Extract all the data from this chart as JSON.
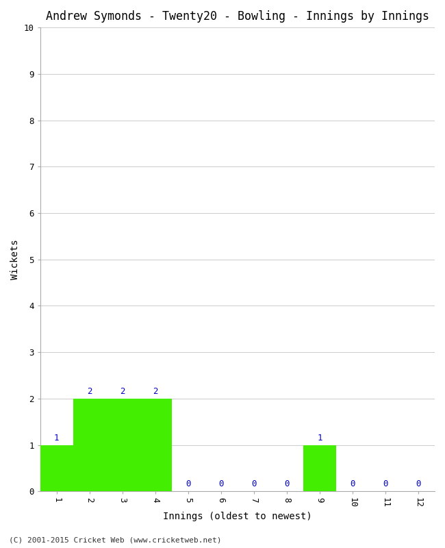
{
  "title": "Andrew Symonds - Twenty20 - Bowling - Innings by Innings",
  "innings": [
    1,
    2,
    3,
    4,
    5,
    6,
    7,
    8,
    9,
    10,
    11,
    12
  ],
  "wickets": [
    1,
    2,
    2,
    2,
    0,
    0,
    0,
    0,
    1,
    0,
    0,
    0
  ],
  "bar_color": "#44ee00",
  "label_color": "#0000cc",
  "ylabel": "Wickets",
  "xlabel": "Innings (oldest to newest)",
  "ylim": [
    0,
    10
  ],
  "yticks": [
    0,
    1,
    2,
    3,
    4,
    5,
    6,
    7,
    8,
    9,
    10
  ],
  "xticks": [
    1,
    2,
    3,
    4,
    5,
    6,
    7,
    8,
    9,
    10,
    11,
    12
  ],
  "footnote": "(C) 2001-2015 Cricket Web (www.cricketweb.net)",
  "background_color": "#ffffff",
  "plot_bg_color": "#ffffff",
  "title_fontsize": 12,
  "axis_label_fontsize": 10,
  "tick_fontsize": 9,
  "bar_width": 1.0
}
